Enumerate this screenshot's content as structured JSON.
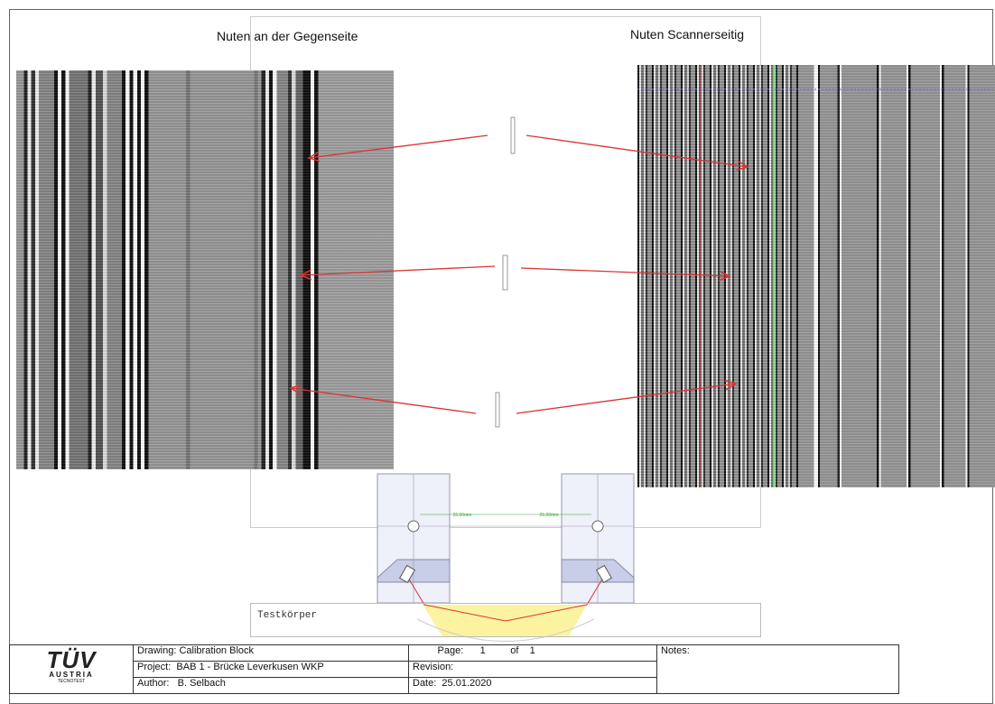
{
  "headings": {
    "left": "Nuten an der Gegenseite",
    "right": "Nuten Scannerseitig"
  },
  "drawing": {
    "dimensions": [
      "25.00mm",
      "25.00mm"
    ],
    "part_label": "Testkörper"
  },
  "logo": {
    "brand": "TÜV",
    "country": "AUSTRIA",
    "division": "TECNOTEST"
  },
  "title_block": {
    "drawing_label": "Drawing:",
    "drawing": "Calibration Block",
    "page_label": "Page:",
    "page": 1,
    "of_label": "of",
    "page_count": 1,
    "notes_label": "Notes:",
    "project_label": "Project:",
    "project": "BAB 1 - Brücke Leverkusen WKP",
    "revision_label": "Revision:",
    "author_label": "Author:",
    "author": "B. Selbach",
    "date_label": "Date:",
    "date": "25.01.2020"
  }
}
